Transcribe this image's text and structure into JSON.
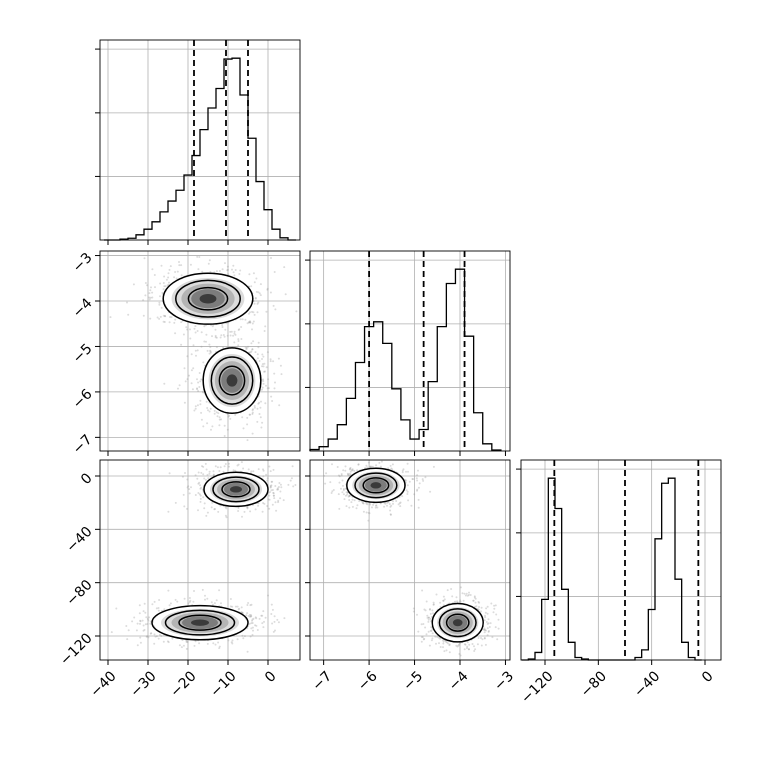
{
  "chart_data": [
    {
      "type": "histogram",
      "panel": "diag-param-0",
      "xlim": [
        -42,
        8
      ],
      "bins": [
        [
          -40,
          0.0
        ],
        [
          -38,
          0.0
        ],
        [
          -36,
          0.2
        ],
        [
          -34,
          0.4
        ],
        [
          -32,
          1.2
        ],
        [
          -30,
          2.5
        ],
        [
          -28,
          4.2
        ],
        [
          -26,
          6.5
        ],
        [
          -24,
          9.0
        ],
        [
          -22,
          11.5
        ],
        [
          -20,
          15.0
        ],
        [
          -18,
          19.5
        ],
        [
          -16,
          25.5
        ],
        [
          -14,
          30.5
        ],
        [
          -12,
          35.0
        ],
        [
          -10,
          41.8
        ],
        [
          -8,
          42.0
        ],
        [
          -6,
          33.5
        ],
        [
          -4,
          23.5
        ],
        [
          -2,
          13.5
        ],
        [
          0,
          7.0
        ],
        [
          2,
          2.5
        ],
        [
          4,
          0.5
        ],
        [
          6,
          0.0
        ]
      ],
      "quantile_lines": [
        -18.5,
        -10.5,
        -5.0
      ]
    },
    {
      "type": "histogram",
      "panel": "diag-param-1",
      "xlim": [
        -7.3,
        -2.9
      ],
      "bins": [
        [
          -7.2,
          0.3
        ],
        [
          -7.0,
          0.9
        ],
        [
          -6.8,
          2.5
        ],
        [
          -6.6,
          5.5
        ],
        [
          -6.4,
          11.0
        ],
        [
          -6.2,
          18.5
        ],
        [
          -6.0,
          26.0
        ],
        [
          -5.8,
          27.0
        ],
        [
          -5.6,
          22.5
        ],
        [
          -5.4,
          13.0
        ],
        [
          -5.2,
          6.5
        ],
        [
          -5.0,
          2.5
        ],
        [
          -4.8,
          4.5
        ],
        [
          -4.6,
          14.5
        ],
        [
          -4.4,
          26.0
        ],
        [
          -4.2,
          35.0
        ],
        [
          -4.0,
          38.0
        ],
        [
          -3.8,
          24.0
        ],
        [
          -3.6,
          8.0
        ],
        [
          -3.4,
          1.5
        ],
        [
          -3.2,
          0.2
        ]
      ],
      "quantile_lines": [
        -6.0,
        -4.8,
        -3.9
      ]
    },
    {
      "type": "histogram",
      "panel": "diag-param-2",
      "xlim": [
        -138,
        12
      ],
      "bins": [
        [
          -135,
          0.0
        ],
        [
          -130,
          0.2
        ],
        [
          -125,
          1.5
        ],
        [
          -120,
          12.0
        ],
        [
          -115,
          36.0
        ],
        [
          -110,
          30.0
        ],
        [
          -105,
          14.0
        ],
        [
          -100,
          3.5
        ],
        [
          -95,
          0.5
        ],
        [
          -90,
          0.2
        ],
        [
          -85,
          0.0
        ],
        [
          -80,
          0.0
        ],
        [
          -75,
          0.0
        ],
        [
          -70,
          0.0
        ],
        [
          -65,
          0.0
        ],
        [
          -60,
          0.0
        ],
        [
          -55,
          0.0
        ],
        [
          -50,
          0.5
        ],
        [
          -45,
          2.0
        ],
        [
          -40,
          10.0
        ],
        [
          -35,
          24.0
        ],
        [
          -30,
          35.0
        ],
        [
          -25,
          36.0
        ],
        [
          -20,
          16.0
        ],
        [
          -15,
          3.5
        ],
        [
          -10,
          0.5
        ],
        [
          -5,
          0.0
        ]
      ],
      "quantile_lines": [
        -113,
        -60,
        -5
      ]
    },
    {
      "type": "scatter",
      "panel": "param-1-vs-param-0",
      "x_param": 0,
      "y_param": 1,
      "xlim": [
        -42,
        8
      ],
      "ylim": [
        -7.3,
        -2.9
      ],
      "clusters": [
        {
          "center": [
            -15,
            -3.95
          ],
          "spread": [
            7.0,
            0.35
          ]
        },
        {
          "center": [
            -9,
            -5.75
          ],
          "spread": [
            4.5,
            0.45
          ]
        }
      ]
    },
    {
      "type": "scatter",
      "panel": "param-2-vs-param-0",
      "x_param": 0,
      "y_param": 2,
      "xlim": [
        -42,
        8
      ],
      "ylim": [
        -138,
        12
      ],
      "clusters": [
        {
          "center": [
            -8,
            -10
          ],
          "spread": [
            5.0,
            8.0
          ]
        },
        {
          "center": [
            -17,
            -110
          ],
          "spread": [
            7.5,
            8.0
          ]
        }
      ]
    },
    {
      "type": "scatter",
      "panel": "param-2-vs-param-1",
      "x_param": 1,
      "y_param": 2,
      "xlim": [
        -7.3,
        -2.9
      ],
      "ylim": [
        -138,
        12
      ],
      "clusters": [
        {
          "center": [
            -5.85,
            -7
          ],
          "spread": [
            0.4,
            8.0
          ]
        },
        {
          "center": [
            -4.05,
            -110
          ],
          "spread": [
            0.35,
            9.0
          ]
        }
      ]
    }
  ],
  "axes": {
    "param0_ticks": [
      "−40",
      "−30",
      "−20",
      "−10",
      "0"
    ],
    "param1_ticks": [
      "−7",
      "−6",
      "−5",
      "−4",
      "−3"
    ],
    "param2_ticks": [
      "−120",
      "−80",
      "−40",
      "0"
    ]
  }
}
